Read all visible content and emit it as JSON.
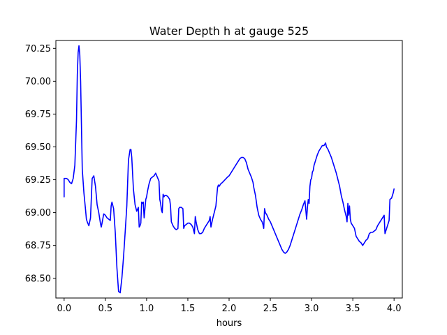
{
  "chart_data": {
    "type": "line",
    "title": "Water Depth h at gauge 525",
    "xlabel": "hours",
    "ylabel": "",
    "xlim": [
      -0.1,
      4.1
    ],
    "ylim": [
      68.35,
      70.31
    ],
    "x_ticks": [
      0.0,
      0.5,
      1.0,
      1.5,
      2.0,
      2.5,
      3.0,
      3.5,
      4.0
    ],
    "x_tick_labels": [
      "0.0",
      "0.5",
      "1.0",
      "1.5",
      "2.0",
      "2.5",
      "3.0",
      "3.5",
      "4.0"
    ],
    "y_ticks": [
      68.5,
      68.75,
      69.0,
      69.25,
      69.5,
      69.75,
      70.0,
      70.25
    ],
    "y_tick_labels": [
      "68.50",
      "68.75",
      "69.00",
      "69.25",
      "69.50",
      "69.75",
      "70.00",
      "70.25"
    ],
    "grid": false,
    "series": [
      {
        "color": "#0000ff",
        "x": [
          0.0,
          0.0,
          0.03,
          0.05,
          0.07,
          0.09,
          0.11,
          0.13,
          0.15,
          0.16,
          0.17,
          0.18,
          0.19,
          0.2,
          0.22,
          0.24,
          0.26,
          0.27,
          0.28,
          0.3,
          0.32,
          0.34,
          0.36,
          0.38,
          0.4,
          0.42,
          0.44,
          0.45,
          0.46,
          0.48,
          0.5,
          0.52,
          0.54,
          0.56,
          0.57,
          0.58,
          0.6,
          0.62,
          0.64,
          0.66,
          0.68,
          0.7,
          0.72,
          0.74,
          0.76,
          0.78,
          0.8,
          0.81,
          0.82,
          0.84,
          0.86,
          0.88,
          0.9,
          0.91,
          0.92,
          0.93,
          0.94,
          0.95,
          0.96,
          0.97,
          0.99,
          1.0,
          1.01,
          1.03,
          1.05,
          1.07,
          1.09,
          1.11,
          1.13,
          1.15,
          1.16,
          1.17,
          1.18,
          1.19,
          1.2,
          1.21,
          1.22,
          1.24,
          1.26,
          1.28,
          1.29,
          1.3,
          1.32,
          1.34,
          1.36,
          1.38,
          1.39,
          1.4,
          1.42,
          1.44,
          1.45,
          1.46,
          1.48,
          1.5,
          1.52,
          1.54,
          1.56,
          1.58,
          1.59,
          1.6,
          1.62,
          1.64,
          1.66,
          1.68,
          1.7,
          1.72,
          1.74,
          1.76,
          1.77,
          1.78,
          1.8,
          1.82,
          1.84,
          1.86,
          1.87,
          1.88,
          1.9,
          1.92,
          1.95,
          1.98,
          2.0,
          2.02,
          2.05,
          2.08,
          2.1,
          2.13,
          2.15,
          2.17,
          2.19,
          2.21,
          2.23,
          2.25,
          2.27,
          2.29,
          2.3,
          2.32,
          2.34,
          2.36,
          2.38,
          2.4,
          2.41,
          2.42,
          2.43,
          2.44,
          2.46,
          2.48,
          2.5,
          2.52,
          2.54,
          2.56,
          2.58,
          2.6,
          2.62,
          2.64,
          2.66,
          2.68,
          2.7,
          2.72,
          2.74,
          2.76,
          2.78,
          2.8,
          2.82,
          2.84,
          2.86,
          2.88,
          2.9,
          2.92,
          2.94,
          2.95,
          2.96,
          2.97,
          2.98,
          2.99,
          3.0,
          3.01,
          3.02,
          3.03,
          3.05,
          3.07,
          3.09,
          3.11,
          3.13,
          3.15,
          3.17,
          3.18,
          3.2,
          3.22,
          3.24,
          3.26,
          3.28,
          3.3,
          3.32,
          3.34,
          3.36,
          3.38,
          3.4,
          3.42,
          3.43,
          3.44,
          3.45,
          3.46,
          3.47,
          3.48,
          3.49,
          3.5,
          3.52,
          3.54,
          3.56,
          3.58,
          3.6,
          3.62,
          3.64,
          3.66,
          3.68,
          3.7,
          3.72,
          3.74,
          3.76,
          3.78,
          3.8,
          3.82,
          3.84,
          3.86,
          3.88,
          3.89,
          3.9,
          3.92,
          3.94,
          3.95,
          3.97,
          3.99,
          4.0
        ],
        "y": [
          69.12,
          69.26,
          69.26,
          69.25,
          69.23,
          69.22,
          69.26,
          69.36,
          69.7,
          70.05,
          70.22,
          70.27,
          70.2,
          70.0,
          69.33,
          69.15,
          69.02,
          68.95,
          68.93,
          68.9,
          68.96,
          69.26,
          69.28,
          69.2,
          69.06,
          69.0,
          68.92,
          68.89,
          68.92,
          68.99,
          68.98,
          68.96,
          68.95,
          68.94,
          69.05,
          69.08,
          69.03,
          68.85,
          68.58,
          68.4,
          68.39,
          68.5,
          68.66,
          68.85,
          69.05,
          69.4,
          69.48,
          69.48,
          69.42,
          69.18,
          69.06,
          69.01,
          69.04,
          68.89,
          68.9,
          68.92,
          69.08,
          69.07,
          69.08,
          68.96,
          69.1,
          69.12,
          69.16,
          69.22,
          69.26,
          69.27,
          69.28,
          69.3,
          69.27,
          69.24,
          69.1,
          69.07,
          69.02,
          69.0,
          69.14,
          69.12,
          69.13,
          69.13,
          69.12,
          69.1,
          69.05,
          68.93,
          68.9,
          68.88,
          68.87,
          68.88,
          69.03,
          69.04,
          69.04,
          69.03,
          68.88,
          68.9,
          68.91,
          68.92,
          68.92,
          68.91,
          68.89,
          68.84,
          68.97,
          68.93,
          68.87,
          68.84,
          68.84,
          68.85,
          68.88,
          68.9,
          68.92,
          68.94,
          68.97,
          68.89,
          68.95,
          69.0,
          69.05,
          69.19,
          69.21,
          69.2,
          69.22,
          69.23,
          69.25,
          69.27,
          69.28,
          69.3,
          69.33,
          69.36,
          69.38,
          69.41,
          69.42,
          69.42,
          69.41,
          69.38,
          69.33,
          69.3,
          69.27,
          69.23,
          69.19,
          69.13,
          69.04,
          68.98,
          68.95,
          68.93,
          68.91,
          68.88,
          69.03,
          69.0,
          68.98,
          68.95,
          68.93,
          68.9,
          68.87,
          68.84,
          68.81,
          68.78,
          68.75,
          68.72,
          68.7,
          68.69,
          68.7,
          68.72,
          68.75,
          68.79,
          68.83,
          68.87,
          68.91,
          68.95,
          68.99,
          69.02,
          69.06,
          69.09,
          68.95,
          69.04,
          69.1,
          69.07,
          69.2,
          69.25,
          69.26,
          69.31,
          69.32,
          69.36,
          69.4,
          69.44,
          69.47,
          69.49,
          69.51,
          69.51,
          69.53,
          69.5,
          69.48,
          69.45,
          69.42,
          69.38,
          69.34,
          69.3,
          69.25,
          69.2,
          69.13,
          69.08,
          69.02,
          68.97,
          68.93,
          69.07,
          68.98,
          69.05,
          68.95,
          68.92,
          68.91,
          68.9,
          68.88,
          68.82,
          68.8,
          68.78,
          68.77,
          68.75,
          68.77,
          68.79,
          68.8,
          68.84,
          68.85,
          68.85,
          68.86,
          68.87,
          68.9,
          68.92,
          68.94,
          68.96,
          68.98,
          68.84,
          68.86,
          68.9,
          68.94,
          69.1,
          69.11,
          69.15,
          69.18
        ]
      }
    ]
  }
}
